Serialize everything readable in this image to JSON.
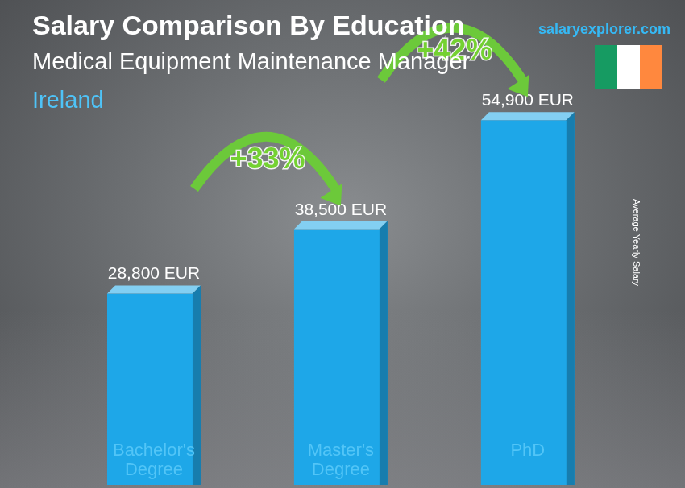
{
  "chart_data": {
    "type": "bar",
    "title": "Salary Comparison By Education",
    "subtitle": [
      "Medical Equipment Maintenance Manager",
      "Ireland"
    ],
    "source": "salaryexplorer.com",
    "y_label": "Average Yearly Salary",
    "categories": [
      "Bachelor's Degree",
      "Master's Degree",
      "PhD"
    ],
    "values": [
      28800,
      38500,
      54900
    ],
    "value_labels": [
      "28,800 EUR",
      "38,500 EUR",
      "54,900 EUR"
    ],
    "data_labels": true,
    "annotations": [
      "+33%",
      "+42%"
    ],
    "color": "#1ea7e8",
    "ylim": [
      0,
      73000
    ],
    "grid": false,
    "tick_labels": "x"
  }
}
